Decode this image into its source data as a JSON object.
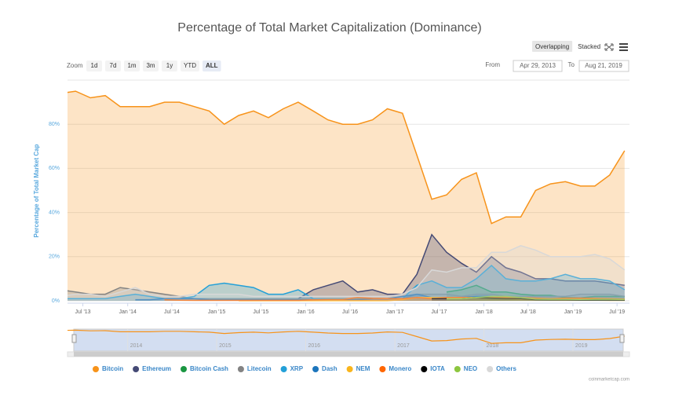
{
  "chart_data": {
    "type": "area",
    "title": "Percentage of Total Market Capitalization (Dominance)",
    "modes": [
      "Overlapping",
      "Stacked"
    ],
    "mode_selected": 0,
    "zoom": {
      "label": "Zoom",
      "buttons": [
        "1d",
        "7d",
        "1m",
        "3m",
        "1y",
        "YTD",
        "ALL"
      ],
      "selected": 6
    },
    "range": {
      "from_label": "From",
      "from": "Apr 29, 2013",
      "to_label": "To",
      "to": "Aug 21, 2019"
    },
    "y_label": "Percentage of Total Market Cap",
    "ylim": [
      0,
      100
    ],
    "yticks": [
      {
        "value": 0,
        "label": "0%"
      },
      {
        "value": 20,
        "label": "20%"
      },
      {
        "value": 40,
        "label": "40%"
      },
      {
        "value": 60,
        "label": "60%"
      },
      {
        "value": 80,
        "label": "80%"
      }
    ],
    "xlim": [
      "2013-04-29",
      "2019-08-21"
    ],
    "xticks": [
      {
        "value": "2013-07",
        "label": "Jul '13"
      },
      {
        "value": "2014-01",
        "label": "Jan '14"
      },
      {
        "value": "2014-07",
        "label": "Jul '14"
      },
      {
        "value": "2015-01",
        "label": "Jan '15"
      },
      {
        "value": "2015-07",
        "label": "Jul '15"
      },
      {
        "value": "2016-01",
        "label": "Jan '16"
      },
      {
        "value": "2016-07",
        "label": "Jul '16"
      },
      {
        "value": "2017-01",
        "label": "Jan '17"
      },
      {
        "value": "2017-07",
        "label": "Jul '17"
      },
      {
        "value": "2018-01",
        "label": "Jan '18"
      },
      {
        "value": "2018-07",
        "label": "Jul '18"
      },
      {
        "value": "2019-01",
        "label": "Jan '19"
      },
      {
        "value": "2019-07",
        "label": "Jul '19"
      }
    ],
    "grid": true,
    "x": [
      "2013-04",
      "2013-06",
      "2013-08",
      "2013-10",
      "2013-12",
      "2014-02",
      "2014-04",
      "2014-06",
      "2014-08",
      "2014-10",
      "2014-12",
      "2015-02",
      "2015-04",
      "2015-06",
      "2015-08",
      "2015-10",
      "2015-12",
      "2016-02",
      "2016-04",
      "2016-06",
      "2016-08",
      "2016-10",
      "2016-12",
      "2017-02",
      "2017-04",
      "2017-06",
      "2017-08",
      "2017-10",
      "2017-12",
      "2018-02",
      "2018-04",
      "2018-06",
      "2018-08",
      "2018-10",
      "2018-12",
      "2019-02",
      "2019-04",
      "2019-06",
      "2019-08"
    ],
    "series": [
      {
        "name": "Bitcoin",
        "color": "#f7931a",
        "values": [
          94,
          95,
          92,
          93,
          88,
          88,
          88,
          90,
          90,
          88,
          86,
          80,
          84,
          86,
          83,
          87,
          90,
          86,
          82,
          80,
          80,
          82,
          87,
          85,
          66,
          46,
          48,
          55,
          58,
          35,
          38,
          38,
          50,
          53,
          54,
          52,
          52,
          57,
          68
        ]
      },
      {
        "name": "Ethereum",
        "color": "#454a75",
        "values": [
          null,
          null,
          null,
          null,
          null,
          null,
          null,
          null,
          null,
          null,
          null,
          null,
          null,
          null,
          0.5,
          1,
          1,
          5,
          7,
          9,
          4,
          5,
          3,
          3,
          12,
          30,
          22,
          17,
          13,
          20,
          15,
          13,
          10,
          10,
          9,
          9,
          9,
          8,
          7
        ]
      },
      {
        "name": "Bitcoin Cash",
        "color": "#1a9641",
        "values": [
          null,
          null,
          null,
          null,
          null,
          null,
          null,
          null,
          null,
          null,
          null,
          null,
          null,
          null,
          null,
          null,
          null,
          null,
          null,
          null,
          null,
          null,
          null,
          null,
          null,
          null,
          4,
          5,
          7,
          4,
          4,
          3,
          2.5,
          2.5,
          1.5,
          1.3,
          2,
          2,
          2
        ]
      },
      {
        "name": "Litecoin",
        "color": "#838383",
        "values": [
          5,
          4,
          3,
          3,
          6,
          5,
          4,
          3,
          2,
          1,
          1,
          1,
          1,
          1,
          1,
          1,
          1,
          1,
          1,
          1,
          1,
          1,
          1,
          1,
          3,
          3,
          3,
          2,
          3,
          3,
          2,
          2,
          2,
          2,
          2,
          3,
          3,
          3,
          2
        ]
      },
      {
        "name": "XRP",
        "color": "#23a0d8",
        "values": [
          1,
          1,
          1,
          1,
          2,
          3,
          2,
          1,
          1,
          2,
          7,
          8,
          7,
          6,
          3,
          3,
          5,
          1,
          1,
          1,
          1,
          1,
          1,
          1,
          7,
          9,
          6,
          6,
          10,
          16,
          10,
          9,
          9,
          10,
          12,
          10,
          10,
          9,
          5
        ]
      },
      {
        "name": "Dash",
        "color": "#1c75bc",
        "values": [
          null,
          null,
          null,
          null,
          null,
          0.5,
          0.5,
          1,
          1,
          1,
          0.5,
          0.5,
          0.5,
          0.5,
          0.5,
          0.5,
          0.5,
          0.5,
          0.5,
          0.5,
          0.5,
          1,
          1,
          2,
          3,
          1.5,
          1,
          1.5,
          2,
          2,
          1,
          1,
          0.8,
          0.7,
          0.7,
          0.7,
          0.7,
          0.5,
          0.4
        ]
      },
      {
        "name": "NEM",
        "color": "#f9b51c",
        "values": [
          null,
          null,
          null,
          null,
          null,
          null,
          null,
          null,
          null,
          null,
          null,
          null,
          0.1,
          0.1,
          0.1,
          0.1,
          0.1,
          0.1,
          0.1,
          0.1,
          0.1,
          0.1,
          0.1,
          0.5,
          1.5,
          1.5,
          1.5,
          1,
          1.5,
          1.5,
          1,
          0.7,
          0.5,
          0.4,
          0.3,
          0.3,
          0.3,
          0.2,
          0.2
        ]
      },
      {
        "name": "Monero",
        "color": "#ff6600",
        "values": [
          null,
          null,
          null,
          null,
          null,
          null,
          null,
          0.5,
          0.3,
          0.2,
          0.2,
          0.2,
          0.2,
          0.2,
          0.2,
          0.2,
          0.2,
          0.5,
          0.6,
          0.6,
          1.5,
          1.1,
          1,
          1,
          1.5,
          1,
          1.5,
          1.5,
          1.5,
          1.5,
          1.5,
          1.5,
          1.2,
          1,
          1.2,
          1.2,
          1.1,
          1,
          0.8
        ]
      },
      {
        "name": "IOTA",
        "color": "#000000",
        "values": [
          null,
          null,
          null,
          null,
          null,
          null,
          null,
          null,
          null,
          null,
          null,
          null,
          null,
          null,
          null,
          null,
          null,
          null,
          null,
          null,
          null,
          null,
          null,
          null,
          null,
          1,
          1,
          1,
          1.5,
          1.2,
          1,
          1,
          0.5,
          0.4,
          0.4,
          0.3,
          0.3,
          0.3,
          0.3
        ]
      },
      {
        "name": "NEO",
        "color": "#8dc63f",
        "values": [
          null,
          null,
          null,
          null,
          null,
          null,
          null,
          null,
          null,
          null,
          null,
          null,
          null,
          null,
          null,
          null,
          null,
          null,
          null,
          null,
          null,
          null,
          null,
          null,
          null,
          null,
          1,
          1,
          1.5,
          2,
          2,
          1.5,
          0.8,
          0.7,
          0.7,
          0.6,
          0.7,
          0.7,
          0.6
        ]
      },
      {
        "name": "Others",
        "color": "#d8d8d8",
        "values": [
          2,
          3,
          3,
          2,
          4,
          6,
          3,
          2,
          2,
          3,
          3,
          3,
          3,
          2,
          2,
          2,
          2,
          2,
          2,
          2,
          2,
          2,
          2,
          3,
          6,
          14,
          13,
          15,
          15,
          22,
          22,
          25,
          23,
          20,
          20,
          20,
          21,
          19,
          14
        ]
      }
    ],
    "navigator": {
      "xticks": [
        {
          "value": "2014-01",
          "label": "2014"
        },
        {
          "value": "2015-01",
          "label": "2015"
        },
        {
          "value": "2016-01",
          "label": "2016"
        },
        {
          "value": "2017-01",
          "label": "2017"
        },
        {
          "value": "2018-01",
          "label": "2018"
        },
        {
          "value": "2019-01",
          "label": "2019"
        }
      ]
    },
    "credit": "coinmarketcap.com"
  }
}
